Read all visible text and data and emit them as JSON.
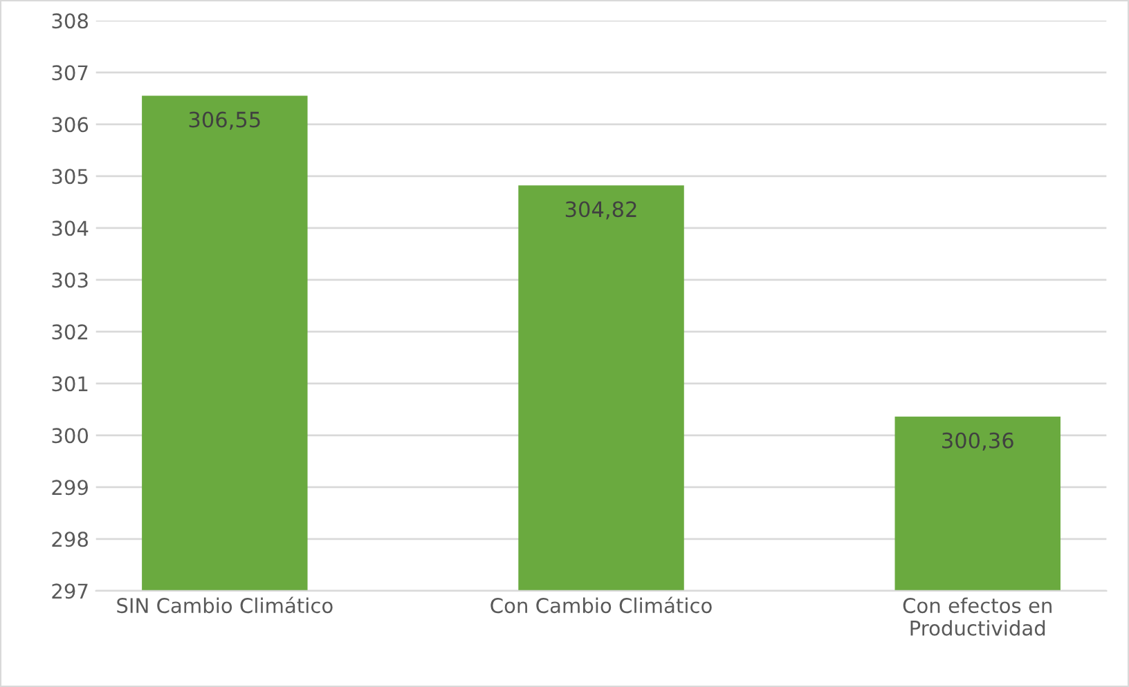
{
  "chart_data": {
    "type": "bar",
    "categories": [
      "SIN Cambio Climático",
      "Con Cambio Climático",
      "Con efectos en\nProductividad"
    ],
    "values": [
      306.55,
      304.82,
      300.36
    ],
    "value_labels": [
      "306,55",
      "304,82",
      "300,36"
    ],
    "color": "#6aaa3f",
    "ylim": [
      297,
      308
    ],
    "yticks": [
      297,
      298,
      299,
      300,
      301,
      302,
      303,
      304,
      305,
      306,
      307,
      308
    ],
    "grid": "y"
  }
}
